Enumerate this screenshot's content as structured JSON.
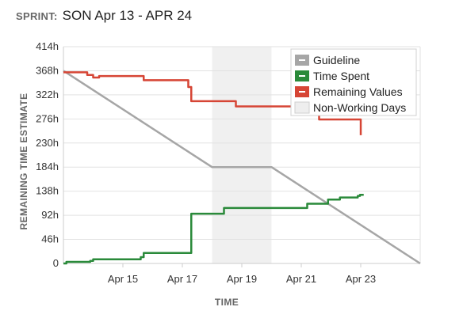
{
  "header": {
    "label": "SPRINT:",
    "name": "SON Apr 13 - APR 24"
  },
  "chart_data": {
    "type": "line",
    "xlabel": "TIME",
    "ylabel": "REMAINING TIME ESTIMATE",
    "xlim": [
      "2026-04-13",
      "2026-04-25"
    ],
    "ylim": [
      0,
      414
    ],
    "y_ticks": [
      "0",
      "46h",
      "92h",
      "138h",
      "184h",
      "230h",
      "276h",
      "322h",
      "368h",
      "414h"
    ],
    "x_ticks": [
      {
        "date": "2026-04-15",
        "label": "Apr 15"
      },
      {
        "date": "2026-04-17",
        "label": "Apr 17"
      },
      {
        "date": "2026-04-19",
        "label": "Apr 19"
      },
      {
        "date": "2026-04-21",
        "label": "Apr 21"
      },
      {
        "date": "2026-04-23",
        "label": "Apr 23"
      }
    ],
    "grid": "horizontal",
    "legend_position": "top-right",
    "non_working_days": {
      "name": "Non-Working Days",
      "start": "2026-04-18",
      "end": "2026-04-20",
      "color": "#f0f0f0"
    },
    "series": [
      {
        "name": "Guideline",
        "color": "#a6a6a6",
        "step": false,
        "points": [
          [
            "2026-04-13 00:00",
            368
          ],
          [
            "2026-04-18 00:00",
            184
          ],
          [
            "2026-04-20 00:00",
            184
          ],
          [
            "2026-04-25 00:00",
            0
          ]
        ]
      },
      {
        "name": "Time Spent",
        "color": "#2a8a3a",
        "step": true,
        "points": [
          [
            "2026-04-13 00:00",
            0
          ],
          [
            "2026-04-13 02:24",
            3
          ],
          [
            "2026-04-13 21:36",
            5
          ],
          [
            "2026-04-14 00:00",
            8
          ],
          [
            "2026-04-15 14:24",
            12
          ],
          [
            "2026-04-15 16:48",
            20
          ],
          [
            "2026-04-17 04:48",
            20
          ],
          [
            "2026-04-17 07:12",
            95
          ],
          [
            "2026-04-18 00:00",
            95
          ],
          [
            "2026-04-18 09:36",
            106
          ],
          [
            "2026-04-21 04:48",
            114
          ],
          [
            "2026-04-21 21:36",
            122
          ],
          [
            "2026-04-22 07:12",
            126
          ],
          [
            "2026-04-22 21:36",
            129
          ],
          [
            "2026-04-22 23:24",
            131
          ],
          [
            "2026-04-23 02:24",
            131
          ]
        ]
      },
      {
        "name": "Remaining Values",
        "color": "#d64535",
        "step": true,
        "points": [
          [
            "2026-04-13 00:00",
            365
          ],
          [
            "2026-04-13 19:12",
            360
          ],
          [
            "2026-04-14 00:00",
            355
          ],
          [
            "2026-04-14 04:48",
            358
          ],
          [
            "2026-04-15 16:48",
            350
          ],
          [
            "2026-04-17 04:48",
            337
          ],
          [
            "2026-04-17 07:12",
            310
          ],
          [
            "2026-04-18 00:00",
            310
          ],
          [
            "2026-04-18 19:12",
            300
          ],
          [
            "2026-04-21 00:00",
            300
          ],
          [
            "2026-04-21 14:24",
            275
          ],
          [
            "2026-04-22 07:12",
            275
          ],
          [
            "2026-04-23 00:00",
            275
          ],
          [
            "2026-04-23 00:01",
            245
          ]
        ]
      }
    ]
  }
}
